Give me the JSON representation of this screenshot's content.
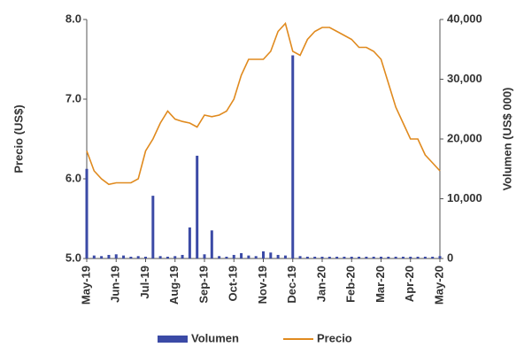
{
  "chart_data": {
    "type": "combo",
    "categories": [
      "May-19",
      null,
      null,
      null,
      "Jun-19",
      null,
      null,
      null,
      "Jul-19",
      null,
      null,
      null,
      "Aug-19",
      null,
      null,
      null,
      "Sep-19",
      null,
      null,
      null,
      "Oct-19",
      null,
      null,
      null,
      "Nov-19",
      null,
      null,
      null,
      "Dec-19",
      null,
      null,
      null,
      "Jan-20",
      null,
      null,
      null,
      "Feb-20",
      null,
      null,
      null,
      "Mar-20",
      null,
      null,
      null,
      "Apr-20",
      null,
      null,
      null,
      "May-20"
    ],
    "series": [
      {
        "name": "Volumen",
        "type": "bar",
        "axis": "y2",
        "color": "#3b4aa6",
        "values": [
          15000,
          500,
          400,
          600,
          700,
          500,
          300,
          400,
          300,
          10500,
          400,
          300,
          400,
          600,
          5200,
          17200,
          700,
          4700,
          400,
          300,
          600,
          900,
          500,
          400,
          1200,
          1000,
          600,
          500,
          34000,
          400,
          300,
          300,
          300,
          300,
          300,
          300,
          300,
          300,
          300,
          300,
          300,
          300,
          300,
          300,
          300,
          300,
          300,
          300,
          400
        ]
      },
      {
        "name": "Precio",
        "type": "line",
        "color": "#e08a1e",
        "values": [
          6.35,
          6.1,
          6.0,
          5.93,
          5.95,
          5.95,
          5.95,
          6.0,
          6.35,
          6.5,
          6.7,
          6.85,
          6.75,
          6.72,
          6.7,
          6.65,
          6.8,
          6.78,
          6.8,
          6.85,
          7.0,
          7.3,
          7.5,
          7.5,
          7.5,
          7.6,
          7.85,
          7.95,
          7.6,
          7.55,
          7.75,
          7.85,
          7.9,
          7.9,
          7.85,
          7.8,
          7.75,
          7.65,
          7.65,
          7.6,
          7.5,
          7.2,
          6.9,
          6.7,
          6.5,
          6.5,
          6.3,
          6.2,
          6.1
        ]
      }
    ],
    "y_label": "Precio  (US$)",
    "y2_label": "Volumen (US$ 000)",
    "ylim": [
      5,
      8
    ],
    "yticks": [
      {
        "value": 5,
        "label": "5.0"
      },
      {
        "value": 6,
        "label": "6.0"
      },
      {
        "value": 7,
        "label": "7.0"
      },
      {
        "value": 8,
        "label": "8.0"
      }
    ],
    "y2lim": [
      0,
      40000
    ],
    "y2ticks": [
      0,
      {
        "value": 10000,
        "label": "10,000"
      },
      {
        "value": 20000,
        "label": "20,000"
      },
      {
        "value": 30000,
        "label": "30,000"
      },
      {
        "value": 40000,
        "label": "40,000"
      }
    ],
    "legend": "bottom"
  }
}
